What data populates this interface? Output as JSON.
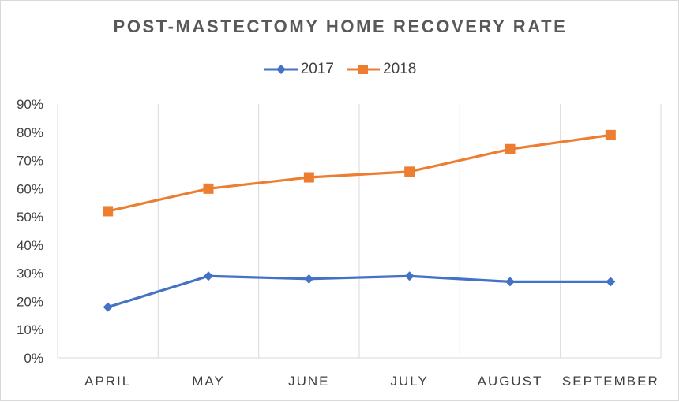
{
  "chart_data": {
    "type": "line",
    "title": "POST-MASTECTOMY HOME RECOVERY RATE",
    "categories": [
      "APRIL",
      "MAY",
      "JUNE",
      "JULY",
      "AUGUST",
      "SEPTEMBER"
    ],
    "series": [
      {
        "name": "2017",
        "color": "#4472c4",
        "marker": "diamond",
        "values": [
          0.18,
          0.29,
          0.28,
          0.29,
          0.27,
          0.27
        ]
      },
      {
        "name": "2018",
        "color": "#ed7d31",
        "marker": "square",
        "values": [
          0.52,
          0.6,
          0.64,
          0.66,
          0.74,
          0.79
        ]
      }
    ],
    "yticks": [
      "0%",
      "10%",
      "20%",
      "30%",
      "40%",
      "50%",
      "60%",
      "70%",
      "80%",
      "90%"
    ],
    "ylim": [
      0,
      0.9
    ],
    "grid": "vertical",
    "legend_position": "top"
  }
}
